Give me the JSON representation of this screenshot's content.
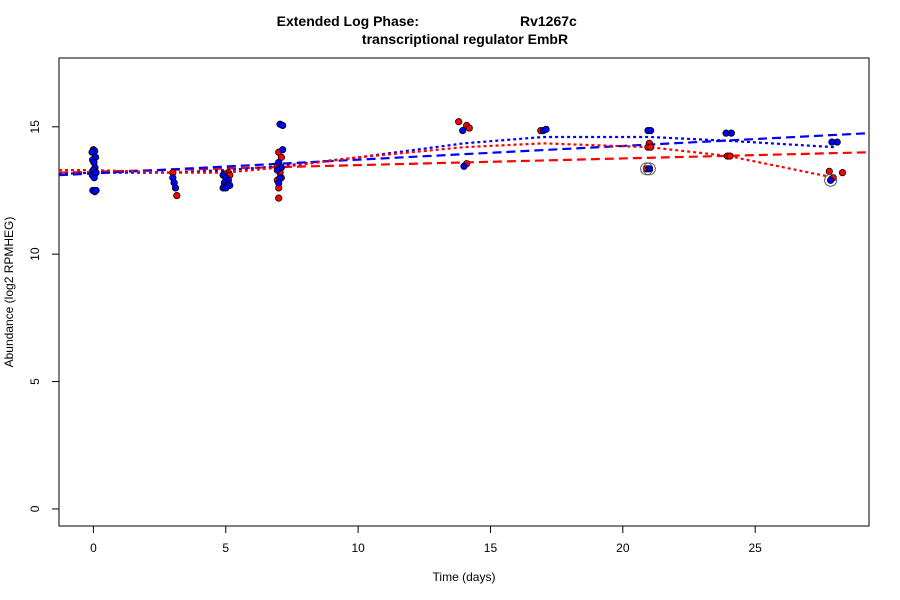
{
  "chart_data": {
    "type": "scatter",
    "title_line1_left": "Extended Log Phase:",
    "title_line1_right": "Rv1267c",
    "title_line2": "transcriptional regulator EmbR",
    "xlabel": "Time  (days)",
    "ylabel": "Abundance  (log2 RPMHEG)",
    "xlim": [
      -1.3,
      29.3
    ],
    "ylim": [
      -0.67,
      17.7
    ],
    "xticks": [
      0,
      5,
      10,
      15,
      20,
      25
    ],
    "yticks": [
      0,
      5,
      10,
      15
    ],
    "grid": false,
    "colors": {
      "red": "#ff0000",
      "blue": "#0000ff"
    },
    "points": [
      {
        "x": 0,
        "y": 14.1,
        "c": "blue"
      },
      {
        "x": 0.05,
        "y": 14.05,
        "c": "blue"
      },
      {
        "x": -0.05,
        "y": 14.0,
        "c": "blue"
      },
      {
        "x": 0.08,
        "y": 13.8,
        "c": "blue"
      },
      {
        "x": -0.03,
        "y": 13.7,
        "c": "blue"
      },
      {
        "x": 0.02,
        "y": 13.6,
        "c": "blue"
      },
      {
        "x": 0.06,
        "y": 13.4,
        "c": "blue"
      },
      {
        "x": 0,
        "y": 13.3,
        "c": "blue"
      },
      {
        "x": -0.04,
        "y": 13.1,
        "c": "blue"
      },
      {
        "x": 0.03,
        "y": 13.0,
        "c": "blue"
      },
      {
        "x": 0.1,
        "y": 13.2,
        "c": "blue"
      },
      {
        "x": -0.02,
        "y": 12.5,
        "c": "blue"
      },
      {
        "x": 0.05,
        "y": 12.45,
        "c": "blue"
      },
      {
        "x": 0.1,
        "y": 12.5,
        "c": "blue"
      },
      {
        "x": 3.0,
        "y": 13.2,
        "c": "red"
      },
      {
        "x": 3.0,
        "y": 13.0,
        "c": "blue"
      },
      {
        "x": 3.05,
        "y": 12.8,
        "c": "blue"
      },
      {
        "x": 3.1,
        "y": 12.6,
        "c": "blue"
      },
      {
        "x": 3.15,
        "y": 12.3,
        "c": "red"
      },
      {
        "x": 5.1,
        "y": 13.2,
        "c": "red"
      },
      {
        "x": 4.95,
        "y": 13.15,
        "c": "red"
      },
      {
        "x": 5.15,
        "y": 13.1,
        "c": "red"
      },
      {
        "x": 4.9,
        "y": 13.1,
        "c": "blue"
      },
      {
        "x": 5.0,
        "y": 13.0,
        "c": "blue"
      },
      {
        "x": 5.1,
        "y": 12.9,
        "c": "blue"
      },
      {
        "x": 4.95,
        "y": 12.8,
        "c": "blue"
      },
      {
        "x": 5.05,
        "y": 12.7,
        "c": "blue"
      },
      {
        "x": 4.9,
        "y": 12.6,
        "c": "blue"
      },
      {
        "x": 5.15,
        "y": 12.7,
        "c": "blue"
      },
      {
        "x": 5.0,
        "y": 12.6,
        "c": "blue"
      },
      {
        "x": 7.0,
        "y": 14.0,
        "c": "red"
      },
      {
        "x": 7.1,
        "y": 13.8,
        "c": "red"
      },
      {
        "x": 6.95,
        "y": 13.5,
        "c": "red"
      },
      {
        "x": 7.05,
        "y": 13.2,
        "c": "red"
      },
      {
        "x": 7.1,
        "y": 13.0,
        "c": "red"
      },
      {
        "x": 6.95,
        "y": 12.9,
        "c": "red"
      },
      {
        "x": 7.0,
        "y": 12.6,
        "c": "red"
      },
      {
        "x": 7.0,
        "y": 12.2,
        "c": "red"
      },
      {
        "x": 7.05,
        "y": 15.1,
        "c": "blue"
      },
      {
        "x": 7.15,
        "y": 15.05,
        "c": "blue"
      },
      {
        "x": 7.15,
        "y": 14.1,
        "c": "blue"
      },
      {
        "x": 7.0,
        "y": 13.6,
        "c": "blue"
      },
      {
        "x": 7.1,
        "y": 13.4,
        "c": "blue"
      },
      {
        "x": 6.95,
        "y": 13.3,
        "c": "blue"
      },
      {
        "x": 7.05,
        "y": 13.0,
        "c": "blue"
      },
      {
        "x": 7.0,
        "y": 12.8,
        "c": "blue"
      },
      {
        "x": 13.8,
        "y": 15.2,
        "c": "red"
      },
      {
        "x": 14.1,
        "y": 15.05,
        "c": "red"
      },
      {
        "x": 14.2,
        "y": 14.95,
        "c": "red"
      },
      {
        "x": 13.95,
        "y": 14.85,
        "c": "blue"
      },
      {
        "x": 14.1,
        "y": 13.55,
        "c": "red"
      },
      {
        "x": 14.0,
        "y": 13.45,
        "c": "blue"
      },
      {
        "x": 16.9,
        "y": 14.85,
        "c": "red"
      },
      {
        "x": 17.0,
        "y": 14.85,
        "c": "blue"
      },
      {
        "x": 17.1,
        "y": 14.9,
        "c": "blue"
      },
      {
        "x": 20.95,
        "y": 14.85,
        "c": "blue"
      },
      {
        "x": 21.05,
        "y": 14.85,
        "c": "blue"
      },
      {
        "x": 21.0,
        "y": 14.35,
        "c": "red"
      },
      {
        "x": 20.95,
        "y": 14.2,
        "c": "red"
      },
      {
        "x": 21.05,
        "y": 14.2,
        "c": "red"
      },
      {
        "x": 20.9,
        "y": 13.35,
        "c": "red",
        "circled": true
      },
      {
        "x": 21.0,
        "y": 13.35,
        "c": "blue",
        "circled": true
      },
      {
        "x": 23.9,
        "y": 14.75,
        "c": "blue"
      },
      {
        "x": 24.1,
        "y": 14.75,
        "c": "blue"
      },
      {
        "x": 23.95,
        "y": 13.85,
        "c": "red"
      },
      {
        "x": 24.05,
        "y": 13.85,
        "c": "red"
      },
      {
        "x": 27.9,
        "y": 14.4,
        "c": "blue"
      },
      {
        "x": 28.1,
        "y": 14.4,
        "c": "blue"
      },
      {
        "x": 27.8,
        "y": 13.25,
        "c": "red"
      },
      {
        "x": 28.3,
        "y": 13.2,
        "c": "red"
      },
      {
        "x": 27.95,
        "y": 13.0,
        "c": "red"
      },
      {
        "x": 27.85,
        "y": 12.9,
        "c": "blue",
        "circled": true
      }
    ],
    "fits": [
      {
        "c": "red",
        "style": "dashed",
        "x": [
          -1.3,
          29.3
        ],
        "y": [
          13.2,
          14.0
        ]
      },
      {
        "c": "blue",
        "style": "dashed",
        "x": [
          -1.3,
          29.3
        ],
        "y": [
          13.1,
          14.75
        ]
      },
      {
        "c": "blue",
        "style": "dotted",
        "x": [
          -1.3,
          0,
          3,
          5,
          7,
          10,
          14,
          17,
          21,
          24,
          28
        ],
        "y": [
          13.15,
          13.2,
          13.2,
          13.3,
          13.45,
          13.8,
          14.35,
          14.6,
          14.6,
          14.45,
          14.2
        ]
      },
      {
        "c": "red",
        "style": "dotted",
        "x": [
          -1.3,
          0,
          3,
          5,
          7,
          10,
          14,
          17,
          21,
          24,
          28
        ],
        "y": [
          13.3,
          13.3,
          13.2,
          13.2,
          13.4,
          13.8,
          14.2,
          14.35,
          14.2,
          13.85,
          13.0
        ]
      }
    ]
  }
}
